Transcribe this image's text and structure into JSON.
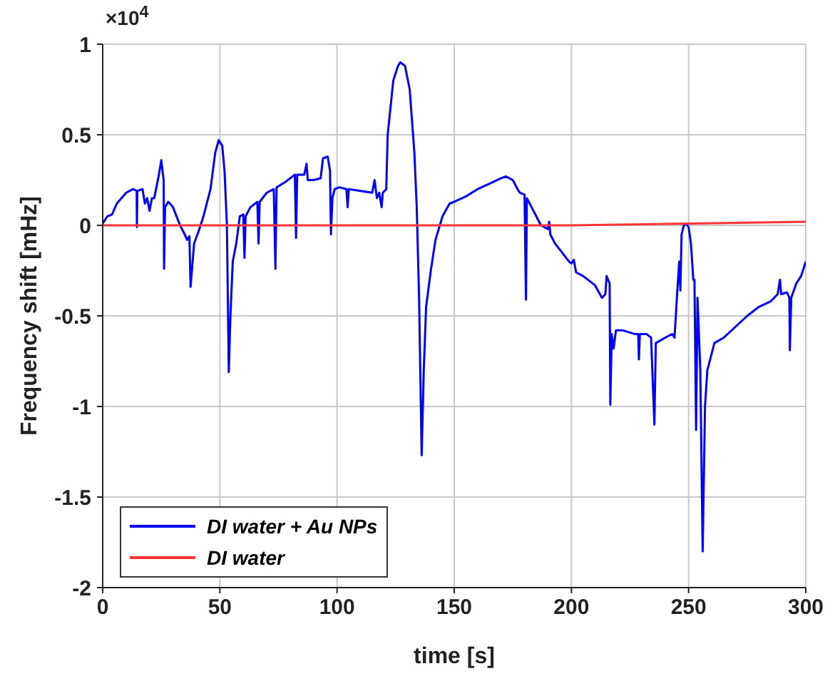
{
  "chart_data": {
    "type": "line",
    "xlabel": "time [s]",
    "ylabel": "Frequency shift [mHz]",
    "annotations": [
      "×10$^{4}$"
    ],
    "xlim": [
      0,
      300
    ],
    "xticks": [
      0,
      50,
      100,
      150,
      200,
      250,
      300
    ],
    "ylim": [
      -2,
      1
    ],
    "yticks": [
      -2,
      -1.5,
      -1,
      -0.5,
      0,
      0.5,
      1
    ],
    "grid": true,
    "legend": "bottom left",
    "marker": "none",
    "line_style": "solid",
    "series": [
      {
        "name": "DI water + Au NPs",
        "color": "#0000ff",
        "x": [
          0,
          2,
          4,
          6,
          8,
          10,
          13,
          14.5,
          14.6,
          14.8,
          17,
          18,
          19,
          20,
          21,
          22,
          24,
          25,
          26,
          26.2,
          26.6,
          28,
          30,
          33,
          35,
          36,
          37,
          37.5,
          39,
          41,
          43,
          46,
          48,
          49.5,
          51,
          52,
          53,
          53.5,
          53.8,
          54.5,
          55.5,
          57,
          58.5,
          60,
          60.5,
          61,
          63,
          65,
          66,
          66.5,
          67,
          70,
          73,
          73.7,
          74.2,
          78,
          82,
          82.5,
          83,
          86,
          87,
          87.5,
          90,
          93,
          94,
          96,
          97,
          97.4,
          98,
          99,
          101,
          104,
          104.5,
          105,
          110,
          115,
          116,
          117,
          118,
          119,
          119.5,
          121,
          121.6,
          124,
          126,
          127,
          129,
          131,
          133,
          134,
          135,
          136.1,
          137,
          138,
          140,
          142,
          145,
          148,
          150,
          155,
          160,
          165,
          170,
          172,
          175,
          177,
          178,
          180,
          180.6,
          181,
          183,
          185,
          187,
          190,
          190.5,
          191,
          193,
          196,
          199,
          200,
          201,
          202,
          205,
          210,
          213,
          214.5,
          215,
          216.3,
          216.6,
          217.2,
          218,
          219,
          222,
          227,
          228.5,
          228.8,
          229.2,
          232,
          234,
          235.4,
          236,
          240,
          243,
          244,
          245,
          246,
          246.5,
          247,
          248,
          249,
          250,
          251,
          252,
          252.5,
          253.2,
          253.8,
          255,
          256,
          257,
          258,
          261,
          265,
          270,
          275,
          280,
          285,
          288,
          289,
          289.5,
          292,
          293,
          293.2,
          293.8,
          296,
          298,
          300
        ],
        "values": [
          0.01,
          0.05,
          0.06,
          0.12,
          0.15,
          0.18,
          0.2,
          0.19,
          -0.01,
          0.19,
          0.2,
          0.12,
          0.15,
          0.08,
          0.15,
          0.15,
          0.28,
          0.36,
          0.25,
          -0.24,
          0.1,
          0.13,
          0.1,
          0,
          -0.05,
          -0.08,
          -0.06,
          -0.34,
          -0.1,
          -0.03,
          0.05,
          0.2,
          0.4,
          0.47,
          0.44,
          0.3,
          0,
          -0.5,
          -0.81,
          -0.5,
          -0.2,
          -0.1,
          0.05,
          0.06,
          -0.18,
          0.05,
          0.1,
          0.12,
          0.13,
          -0.1,
          0.13,
          0.18,
          0.2,
          -0.24,
          0.21,
          0.24,
          0.28,
          -0.07,
          0.28,
          0.28,
          0.34,
          0.25,
          0.25,
          0.26,
          0.37,
          0.38,
          0.3,
          -0.05,
          0.15,
          0.2,
          0.21,
          0.2,
          0.1,
          0.2,
          0.19,
          0.18,
          0.25,
          0.15,
          0.18,
          0.1,
          0.18,
          0.2,
          0.5,
          0.8,
          0.88,
          0.9,
          0.88,
          0.75,
          0.4,
          0.1,
          -0.4,
          -1.27,
          -0.8,
          -0.45,
          -0.25,
          -0.08,
          0.05,
          0.12,
          0.13,
          0.16,
          0.2,
          0.23,
          0.26,
          0.27,
          0.25,
          0.2,
          0.18,
          0.17,
          -0.41,
          0.15,
          0.1,
          0.05,
          0,
          -0.02,
          0.02,
          -0.05,
          -0.1,
          -0.15,
          -0.2,
          -0.21,
          -0.19,
          -0.26,
          -0.28,
          -0.33,
          -0.4,
          -0.38,
          -0.28,
          -0.32,
          -0.99,
          -0.6,
          -0.68,
          -0.58,
          -0.58,
          -0.6,
          -0.6,
          -0.74,
          -0.6,
          -0.6,
          -0.62,
          -1.1,
          -0.65,
          -0.62,
          -0.6,
          -0.62,
          -0.4,
          -0.2,
          -0.36,
          -0.05,
          0,
          0.01,
          -0.01,
          -0.1,
          -0.3,
          -0.3,
          -1.13,
          -0.4,
          -0.8,
          -1.8,
          -1,
          -0.8,
          -0.65,
          -0.62,
          -0.56,
          -0.5,
          -0.45,
          -0.42,
          -0.38,
          -0.3,
          -0.38,
          -0.37,
          -0.4,
          -0.69,
          -0.4,
          -0.32,
          -0.28,
          -0.2
        ]
      },
      {
        "name": "DI water",
        "color": "#ff3333",
        "x": [
          0,
          100,
          200,
          250,
          300
        ],
        "values": [
          0,
          0,
          0,
          0.01,
          0.02
        ]
      }
    ]
  }
}
